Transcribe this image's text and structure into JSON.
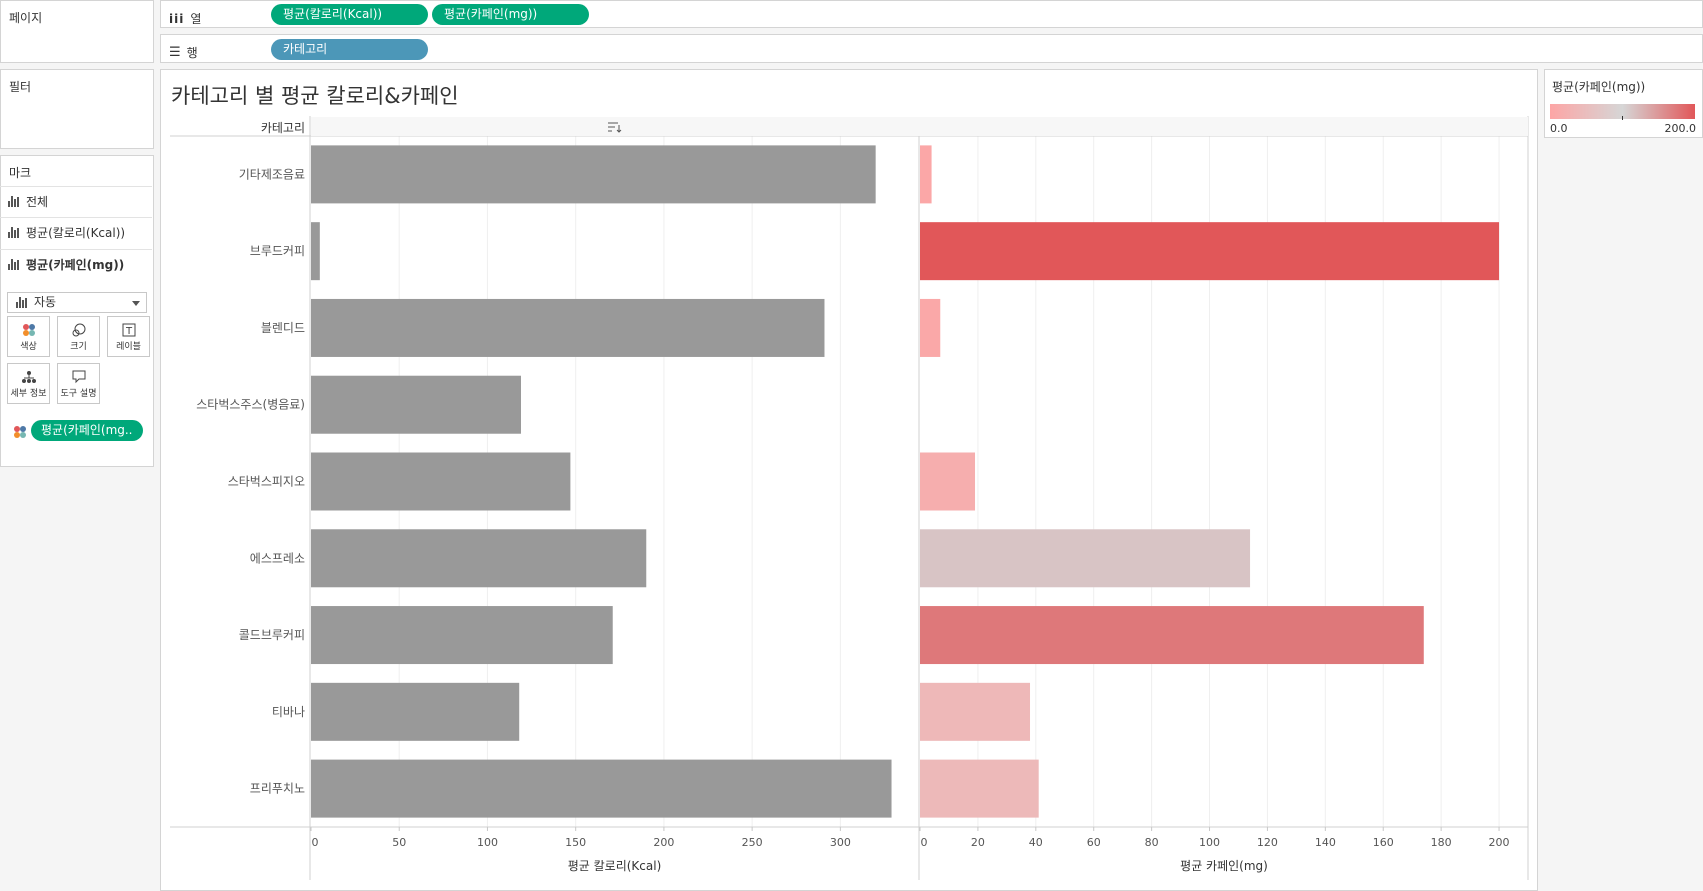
{
  "shelves": {
    "pages_label": "페이지",
    "columns_label": "열",
    "rows_label": "행",
    "column_pills": [
      "평균(칼로리(Kcal))",
      "평균(카페인(mg))"
    ],
    "row_pills": [
      "카테고리"
    ]
  },
  "filters": {
    "label": "필터"
  },
  "marks": {
    "label": "마크",
    "cards": [
      "전체",
      "평균(칼로리(Kcal))",
      "평균(카페인(mg))"
    ],
    "mark_type": "자동",
    "buttons": {
      "color": "색상",
      "size": "크기",
      "label": "레이블",
      "detail": "세부 정보",
      "tooltip": "도구 설명"
    },
    "color_pill": "평균(카페인(mg.."
  },
  "legend": {
    "title": "평균(카페인(mg))",
    "min_label": "0.0",
    "max_label": "200.0"
  },
  "colors": {
    "pill_green": "#00a87a",
    "pill_blue": "#4c97b8",
    "calorie_bar": "#999999",
    "caffeine_low": "#fda5a5",
    "caffeine_mid": "#d6d6d6",
    "caffeine_high": "#e15759"
  },
  "viz_title": "카테고리 별 평균 칼로리&카페인",
  "row_header": "카테고리",
  "chart_data": [
    {
      "type": "bar",
      "orientation": "horizontal",
      "categories": [
        "기타제조음료",
        "브루드커피",
        "블렌디드",
        "스타벅스주스(병음료)",
        "스타벅스피지오",
        "에스프레소",
        "콜드브루커피",
        "티바나",
        "프리푸치노"
      ],
      "values": [
        320,
        5,
        291,
        119,
        147,
        190,
        171,
        118,
        329
      ],
      "xlabel": "평균 칼로리(Kcal)",
      "xlim": [
        0,
        344
      ],
      "ticks": [
        0,
        50,
        100,
        150,
        200,
        250,
        300
      ],
      "tick_labels": [
        "0",
        "50",
        "100",
        "150",
        "200",
        "250",
        "300"
      ],
      "grid": true
    },
    {
      "type": "bar",
      "orientation": "horizontal",
      "categories": [
        "기타제조음료",
        "브루드커피",
        "블렌디드",
        "스타벅스주스(병음료)",
        "스타벅스피지오",
        "에스프레소",
        "콜드브루커피",
        "티바나",
        "프리푸치노"
      ],
      "values": [
        4,
        200,
        7,
        0,
        19,
        114,
        174,
        38,
        41
      ],
      "xlabel": "평균 카페인(mg)",
      "xlim": [
        0,
        210
      ],
      "ticks": [
        0,
        20,
        40,
        60,
        80,
        100,
        120,
        140,
        160,
        180,
        200
      ],
      "tick_labels": [
        "0",
        "20",
        "40",
        "60",
        "80",
        "100",
        "120",
        "140",
        "160",
        "180",
        "200"
      ],
      "color_scale": [
        0,
        200
      ],
      "grid": true
    }
  ]
}
